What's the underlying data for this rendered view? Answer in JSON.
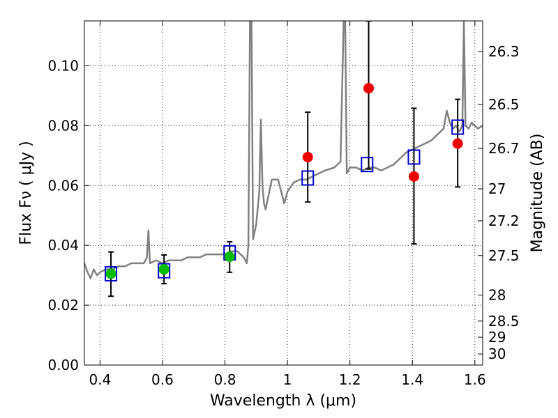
{
  "chart_data": {
    "type": "scatter",
    "xlabel": "Wavelength  λ (μm)",
    "ylabel": "Flux  Fν  ( μJy )",
    "y2label": "Magnitude (AB)",
    "xlim": [
      0.35,
      1.625
    ],
    "ylim": [
      0.0,
      0.115
    ],
    "grid": true,
    "x_ticks": [
      0.4,
      0.6,
      0.8,
      1.0,
      1.2,
      1.4,
      1.6
    ],
    "x_tick_labels": [
      "0.4",
      "0.6",
      "0.8",
      "1",
      "1.2",
      "1.4",
      "1.6"
    ],
    "y_ticks": [
      0.0,
      0.02,
      0.04,
      0.06,
      0.08,
      0.1
    ],
    "y_tick_labels": [
      "0.00",
      "0.02",
      "0.04",
      "0.06",
      "0.08",
      "0.10"
    ],
    "y2_ticks": [
      {
        "label": "26.3",
        "flux": 0.1047
      },
      {
        "label": "26.5",
        "flux": 0.0871
      },
      {
        "label": "26.7",
        "flux": 0.0724
      },
      {
        "label": "27",
        "flux": 0.0589
      },
      {
        "label": "27.2",
        "flux": 0.0482
      },
      {
        "label": "27.5",
        "flux": 0.0366
      },
      {
        "label": "28",
        "flux": 0.0234
      },
      {
        "label": "28.5",
        "flux": 0.0147
      },
      {
        "label": "29",
        "flux": 0.0093
      },
      {
        "label": "30",
        "flux": 0.0037
      }
    ],
    "model_spectrum": {
      "color": "#808080",
      "x": [
        0.35,
        0.36,
        0.37,
        0.38,
        0.39,
        0.4,
        0.42,
        0.44,
        0.46,
        0.48,
        0.5,
        0.52,
        0.54,
        0.55,
        0.555,
        0.56,
        0.58,
        0.6,
        0.62,
        0.64,
        0.66,
        0.68,
        0.7,
        0.72,
        0.74,
        0.76,
        0.78,
        0.8,
        0.82,
        0.84,
        0.86,
        0.87,
        0.875,
        0.88,
        0.885,
        0.89,
        0.9,
        0.91,
        0.915,
        0.92,
        0.925,
        0.93,
        0.95,
        0.97,
        0.99,
        1.0,
        1.02,
        1.04,
        1.06,
        1.08,
        1.1,
        1.12,
        1.15,
        1.17,
        1.18,
        1.185,
        1.19,
        1.2,
        1.22,
        1.24,
        1.26,
        1.28,
        1.3,
        1.32,
        1.34,
        1.36,
        1.38,
        1.4,
        1.42,
        1.44,
        1.46,
        1.48,
        1.5,
        1.51,
        1.52,
        1.53,
        1.54,
        1.55,
        1.56,
        1.565,
        1.57,
        1.58,
        1.59,
        1.6,
        1.61,
        1.625
      ],
      "y": [
        0.034,
        0.031,
        0.029,
        0.032,
        0.03,
        0.031,
        0.032,
        0.032,
        0.033,
        0.033,
        0.034,
        0.034,
        0.034,
        0.036,
        0.045,
        0.034,
        0.035,
        0.034,
        0.035,
        0.035,
        0.035,
        0.036,
        0.036,
        0.036,
        0.037,
        0.037,
        0.037,
        0.037,
        0.038,
        0.038,
        0.036,
        0.034,
        0.04,
        0.115,
        0.115,
        0.042,
        0.047,
        0.058,
        0.082,
        0.06,
        0.054,
        0.052,
        0.062,
        0.062,
        0.054,
        0.058,
        0.061,
        0.062,
        0.062,
        0.063,
        0.064,
        0.065,
        0.066,
        0.068,
        0.115,
        0.115,
        0.064,
        0.066,
        0.066,
        0.065,
        0.066,
        0.066,
        0.065,
        0.066,
        0.067,
        0.069,
        0.071,
        0.072,
        0.073,
        0.074,
        0.075,
        0.077,
        0.079,
        0.085,
        0.081,
        0.079,
        0.08,
        0.078,
        0.08,
        0.115,
        0.08,
        0.079,
        0.081,
        0.08,
        0.079,
        0.08
      ]
    },
    "series": [
      {
        "marker": "square",
        "color": "#0000cc",
        "x": [
          0.435,
          0.605,
          0.815,
          1.065,
          1.255,
          1.405,
          1.545
        ],
        "y": [
          0.0305,
          0.0315,
          0.0375,
          0.0625,
          0.067,
          0.0695,
          0.0795
        ]
      },
      {
        "marker": "circle",
        "color": "#00bb00",
        "x": [
          0.435,
          0.605,
          0.815
        ],
        "y": [
          0.0305,
          0.032,
          0.0362
        ],
        "yerr_low": [
          0.023,
          0.0272,
          0.031
        ],
        "yerr_high": [
          0.0378,
          0.0368,
          0.0412
        ]
      },
      {
        "marker": "circle",
        "color": "#ee0000",
        "x": [
          1.065,
          1.26,
          1.405,
          1.545
        ],
        "y": [
          0.0695,
          0.0925,
          0.063,
          0.074
        ],
        "yerr_low": [
          0.0545,
          0.0655,
          0.0405,
          0.0595
        ],
        "yerr_high": [
          0.0845,
          0.115,
          0.0858,
          0.0888
        ]
      }
    ]
  }
}
